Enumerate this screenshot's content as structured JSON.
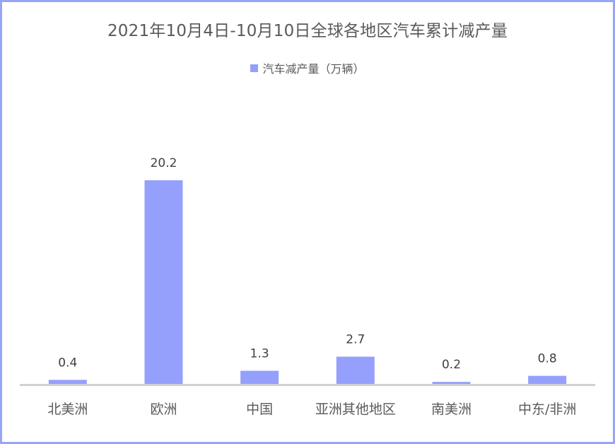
{
  "chart_data": {
    "type": "bar",
    "title": "2021年10月4日-10月10日全球各地区汽车累计减产量",
    "categories": [
      "北美洲",
      "欧洲",
      "中国",
      "亚洲其他地区",
      "南美洲",
      "中东/非洲"
    ],
    "series": [
      {
        "name": "汽车减产量（万辆）",
        "values": [
          0.4,
          20.2,
          1.3,
          2.7,
          0.2,
          0.8
        ],
        "labels": [
          "0.4",
          "20.2",
          "1.3",
          "2.7",
          "0.2",
          "0.8"
        ],
        "color": "#959ffc"
      }
    ],
    "ylim": [
      0,
      20.2
    ],
    "grid": false,
    "legend_position": "top",
    "colors": {
      "bar": "#959ffc",
      "border": "#98a4f8",
      "axis": "#d0d0d0",
      "text": "#595959"
    }
  }
}
